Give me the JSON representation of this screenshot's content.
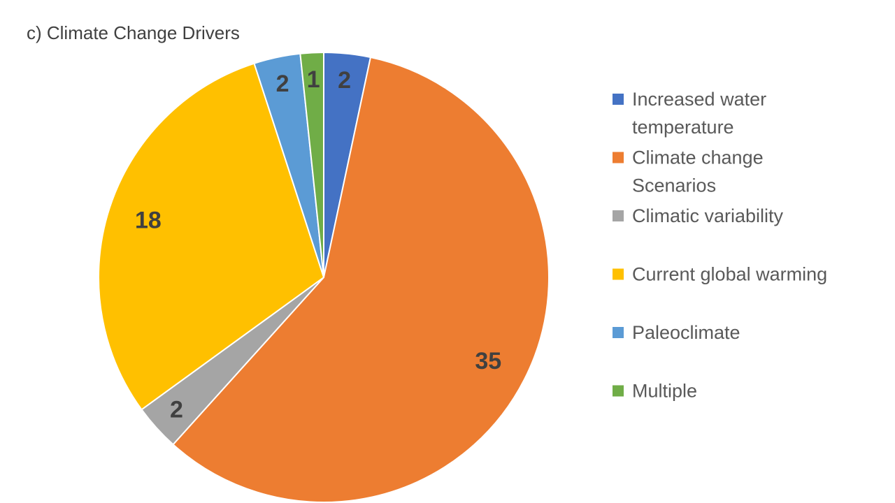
{
  "chart_data": {
    "type": "pie",
    "title": "c) Climate Change Drivers",
    "slices": [
      {
        "label_lines": [
          "Increased water",
          "temperature"
        ],
        "value": 2,
        "data_label": "2",
        "color": "#4472C4"
      },
      {
        "label_lines": [
          "Climate change",
          "Scenarios"
        ],
        "value": 35,
        "data_label": "35",
        "color": "#ED7D31"
      },
      {
        "label_lines": [
          "Climatic variability"
        ],
        "value": 2,
        "data_label": "2",
        "color": "#A5A5A5"
      },
      {
        "label_lines": [
          "Current global warming"
        ],
        "value": 18,
        "data_label": "18",
        "color": "#FFC000"
      },
      {
        "label_lines": [
          "Paleoclimate"
        ],
        "value": 2,
        "data_label": "2",
        "color": "#5B9BD5"
      },
      {
        "label_lines": [
          "Multiple"
        ],
        "value": 1,
        "data_label": "1",
        "color": "#70AD47"
      }
    ],
    "legend_position": "right",
    "start_angle": "12 o'clock",
    "direction": "clockwise"
  }
}
